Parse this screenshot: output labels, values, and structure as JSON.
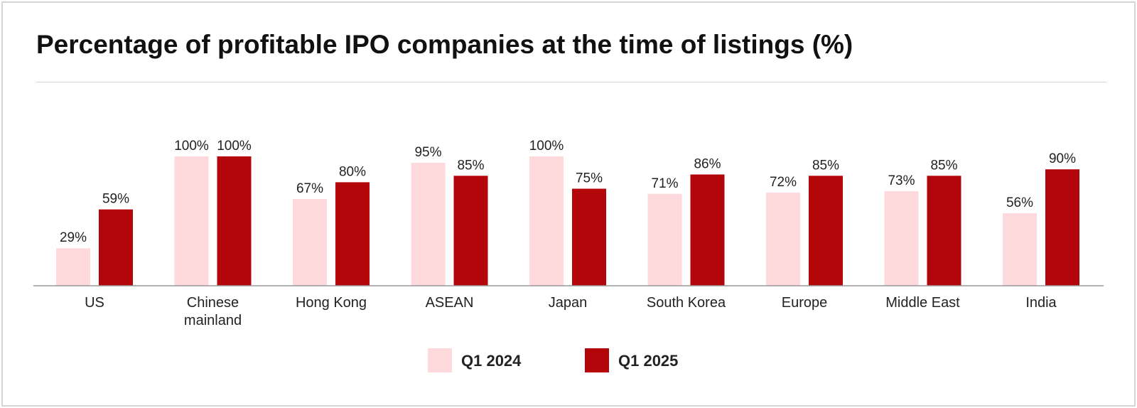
{
  "title": "Percentage of profitable IPO companies at the time of listings (%)",
  "colors": {
    "q1_2024": "#fdd9dc",
    "q1_2025": "#b3060b",
    "axis": "#999999",
    "divider": "#d6d6d6"
  },
  "chart_data": {
    "type": "bar",
    "title": "Percentage of profitable IPO companies at the time of listings (%)",
    "xlabel": "",
    "ylabel": "",
    "ylim": [
      0,
      100
    ],
    "grid": false,
    "legend_position": "bottom-center",
    "value_suffix": "%",
    "categories": [
      [
        "US"
      ],
      [
        "Chinese",
        "mainland"
      ],
      [
        "Hong Kong"
      ],
      [
        "ASEAN"
      ],
      [
        "Japan"
      ],
      [
        "South Korea"
      ],
      [
        "Europe"
      ],
      [
        "Middle East"
      ],
      [
        "India"
      ]
    ],
    "series": [
      {
        "name": "Q1 2024",
        "color": "#fdd9dc",
        "values": [
          29,
          100,
          67,
          95,
          100,
          71,
          72,
          73,
          56
        ]
      },
      {
        "name": "Q1 2025",
        "color": "#b3060b",
        "values": [
          59,
          100,
          80,
          85,
          75,
          86,
          85,
          85,
          90
        ]
      }
    ]
  }
}
